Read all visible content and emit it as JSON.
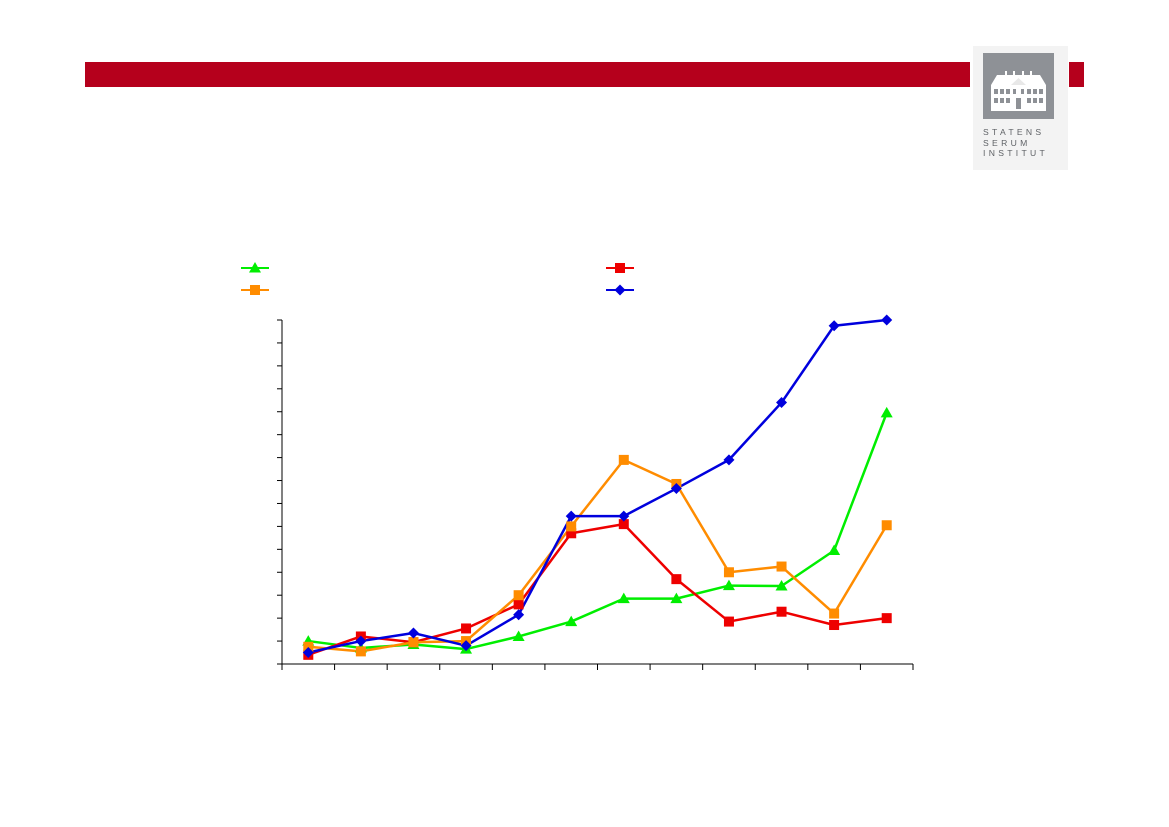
{
  "header": {
    "bar_color": "#b5001c"
  },
  "logo": {
    "lines": [
      "STATENS",
      "SERUM",
      "INSTITUT"
    ],
    "icon": "manor-building-icon",
    "box_color": "#8e9196"
  },
  "chart_data": {
    "type": "line",
    "title": "",
    "xlabel": "",
    "ylabel": "",
    "x": [
      1,
      2,
      3,
      4,
      5,
      6,
      7,
      8,
      9,
      10,
      11,
      12
    ],
    "ylim": [
      0,
      15
    ],
    "y_ticks": 15,
    "x_ticks": 12,
    "grid": false,
    "legend_position": "top",
    "series": [
      {
        "color": "#00ee00",
        "marker": "triangle",
        "values": [
          1.0,
          0.7,
          0.85,
          0.65,
          1.2,
          1.85,
          2.85,
          2.85,
          3.42,
          3.4,
          4.95,
          10.95
        ]
      },
      {
        "color": "#ee0000",
        "marker": "square",
        "values": [
          0.4,
          1.2,
          0.95,
          1.55,
          2.6,
          5.7,
          6.1,
          3.7,
          1.85,
          2.28,
          1.7,
          2.0
        ]
      },
      {
        "color": "#ff8c00",
        "marker": "square",
        "values": [
          0.75,
          0.55,
          0.95,
          1.0,
          3.0,
          6.0,
          8.9,
          7.85,
          4.0,
          4.25,
          2.2,
          6.05
        ]
      },
      {
        "color": "#0000dd",
        "marker": "diamond",
        "values": [
          0.5,
          1.0,
          1.35,
          0.8,
          2.15,
          6.45,
          6.45,
          7.65,
          8.9,
          11.4,
          14.75,
          15.0
        ]
      }
    ]
  }
}
